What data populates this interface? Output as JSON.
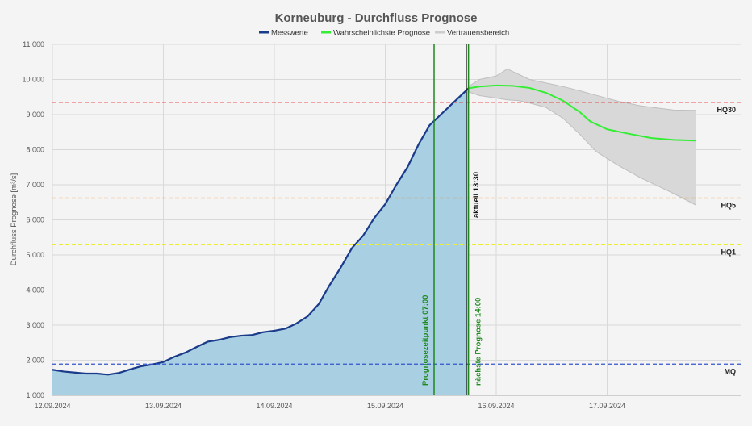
{
  "chart_data": {
    "type": "line",
    "title": "Korneuburg - Durchfluss Prognose",
    "ylabel": "Durchfluss Prognose [m³/s]",
    "xlabel": "",
    "ylim": [
      1000,
      11000
    ],
    "xlim": [
      0,
      6.5
    ],
    "yticks": [
      1000,
      2000,
      3000,
      4000,
      5000,
      6000,
      7000,
      8000,
      9000,
      10000,
      11000
    ],
    "ytick_labels": [
      "1 000",
      "2 000",
      "3 000",
      "4 000",
      "5 000",
      "6 000",
      "7 000",
      "8 000",
      "9 000",
      "10 000",
      "11 000"
    ],
    "x_categories": [
      "12.09.2024",
      "13.09.2024",
      "14.09.2024",
      "15.09.2024",
      "16.09.2024",
      "17.09.2024"
    ],
    "x_positions": [
      0,
      1,
      2,
      3,
      4,
      5
    ],
    "legend": [
      {
        "label": "Messwerte",
        "color": "#1a3a8a"
      },
      {
        "label": "Wahrscheinlichste Prognose",
        "color": "#33ee33"
      },
      {
        "label": "Vertrauensbereich",
        "color": "#cccccc"
      }
    ],
    "series": [
      {
        "name": "Messwerte",
        "color": "#1a3a8a",
        "x": [
          0,
          0.1,
          0.2,
          0.3,
          0.4,
          0.5,
          0.6,
          0.7,
          0.8,
          0.9,
          1.0,
          1.1,
          1.2,
          1.3,
          1.4,
          1.5,
          1.6,
          1.7,
          1.8,
          1.9,
          2.0,
          2.1,
          2.2,
          2.3,
          2.4,
          2.5,
          2.6,
          2.7,
          2.8,
          2.9,
          3.0,
          3.1,
          3.2,
          3.3,
          3.4,
          3.5,
          3.6,
          3.7,
          3.75
        ],
        "values": [
          1730,
          1680,
          1650,
          1620,
          1620,
          1590,
          1640,
          1740,
          1830,
          1880,
          1950,
          2100,
          2220,
          2380,
          2530,
          2580,
          2660,
          2700,
          2720,
          2800,
          2840,
          2900,
          3050,
          3250,
          3600,
          4150,
          4650,
          5200,
          5550,
          6050,
          6450,
          7000,
          7500,
          8150,
          8700,
          9000,
          9300,
          9600,
          9750
        ]
      },
      {
        "name": "Wahrscheinlichste Prognose",
        "color": "#33ee33",
        "x": [
          3.75,
          3.85,
          4.0,
          4.15,
          4.3,
          4.45,
          4.6,
          4.75,
          4.85,
          5.0,
          5.2,
          5.4,
          5.6,
          5.8
        ],
        "values": [
          9750,
          9800,
          9830,
          9820,
          9760,
          9620,
          9400,
          9080,
          8800,
          8580,
          8450,
          8330,
          8280,
          8260
        ]
      },
      {
        "name": "Vertrauensbereich",
        "color": "#cccccc",
        "x": [
          3.75,
          3.85,
          4.0,
          4.1,
          4.2,
          4.3,
          4.45,
          4.6,
          4.75,
          4.9,
          5.1,
          5.3,
          5.5,
          5.6,
          5.8
        ],
        "upper": [
          9800,
          10000,
          10100,
          10300,
          10150,
          10000,
          9900,
          9800,
          9680,
          9550,
          9380,
          9250,
          9170,
          9130,
          9120
        ],
        "lower": [
          9650,
          9540,
          9470,
          9420,
          9400,
          9330,
          9200,
          8900,
          8450,
          7950,
          7550,
          7200,
          6900,
          6750,
          6420
        ]
      }
    ],
    "thresholds": [
      {
        "label": "HQ30",
        "value": 9350,
        "color": "#e82020"
      },
      {
        "label": "HQ5",
        "value": 6620,
        "color": "#f08a24"
      },
      {
        "label": "HQ1",
        "value": 5290,
        "color": "#eeee30"
      },
      {
        "label": "MQ",
        "value": 1890,
        "color": "#3355cc"
      }
    ],
    "vertical_lines": [
      {
        "label": "Prognosezeitpunkt 07:00",
        "x": 3.44,
        "color": "#1e8a1e",
        "label_color": "#1e8a1e"
      },
      {
        "label": "aktuell 13:30",
        "x": 3.73,
        "color": "#111111",
        "label_color": "#111111"
      },
      {
        "label": "nächste Prognose 14:00",
        "x": 3.75,
        "color": "#1e8a1e",
        "label_color": "#1e8a1e"
      }
    ]
  }
}
